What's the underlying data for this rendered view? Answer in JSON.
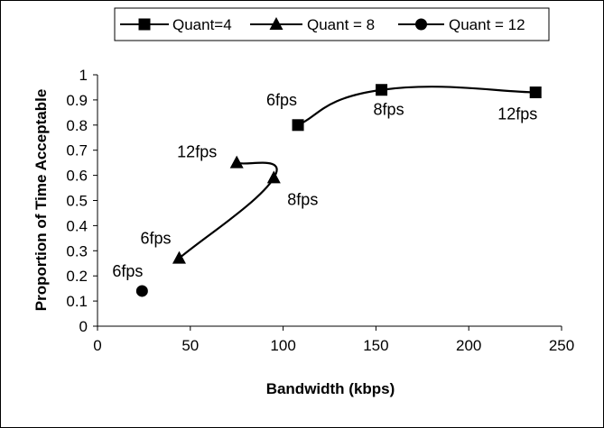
{
  "chart_data": {
    "type": "line",
    "title": "",
    "xlabel": "Bandwidth (kbps)",
    "ylabel": "Proportion of Time Acceptable",
    "xlim": [
      0,
      250
    ],
    "ylim": [
      0,
      1
    ],
    "xticks": [
      "0",
      "50",
      "100",
      "150",
      "200",
      "250"
    ],
    "yticks": [
      "0",
      "0.1",
      "0.2",
      "0.3",
      "0.4",
      "0.5",
      "0.6",
      "0.7",
      "0.8",
      "0.9",
      "1"
    ],
    "grid": false,
    "legend_position": "top",
    "series": [
      {
        "name": "Quant=4",
        "marker": "square",
        "points": [
          {
            "x": 108,
            "y": 0.8,
            "label": "6fps"
          },
          {
            "x": 153,
            "y": 0.94,
            "label": "8fps"
          },
          {
            "x": 236,
            "y": 0.93,
            "label": "12fps"
          }
        ]
      },
      {
        "name": "Quant = 8",
        "marker": "triangle",
        "points": [
          {
            "x": 44,
            "y": 0.27,
            "label": "6fps"
          },
          {
            "x": 95,
            "y": 0.59,
            "label": "8fps"
          },
          {
            "x": 75,
            "y": 0.65,
            "label": "12fps"
          }
        ]
      },
      {
        "name": "Quant = 12",
        "marker": "circle",
        "points": [
          {
            "x": 24,
            "y": 0.14,
            "label": "6fps"
          }
        ]
      }
    ]
  },
  "colors": {
    "line": "#000000",
    "marker": "#000000",
    "background": "#ffffff"
  }
}
